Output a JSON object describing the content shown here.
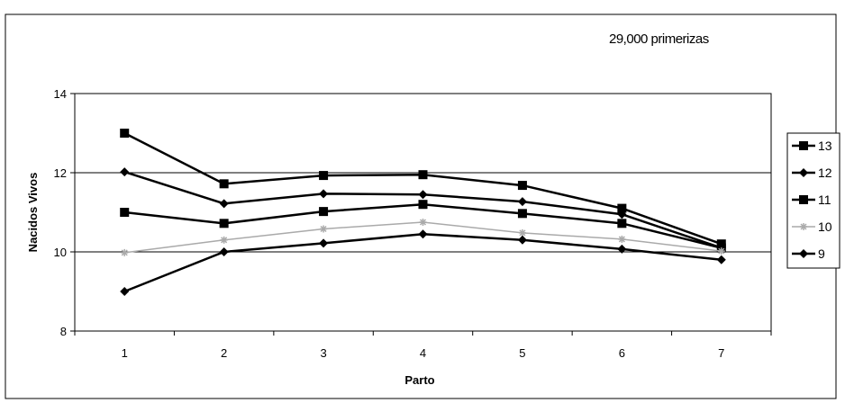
{
  "chart_data": {
    "type": "line",
    "title": "",
    "annotation": "29,000 primerizas",
    "xlabel": "Parto",
    "ylabel": "Nacidos Vivos",
    "categories": [
      "1",
      "2",
      "3",
      "4",
      "5",
      "6",
      "7"
    ],
    "ylim": [
      8,
      14
    ],
    "yticks": [
      "8",
      "10",
      "12",
      "14"
    ],
    "grid": "horizontal major gridlines",
    "legend_position": "right",
    "series": [
      {
        "name": "13",
        "marker": "square",
        "color": "#000000",
        "values": [
          13.0,
          11.72,
          11.93,
          11.95,
          11.68,
          11.1,
          10.2
        ]
      },
      {
        "name": "12",
        "marker": "diamond",
        "color": "#000000",
        "values": [
          12.02,
          11.22,
          11.47,
          11.45,
          11.27,
          10.95,
          10.1
        ]
      },
      {
        "name": "11",
        "marker": "square",
        "color": "#000000",
        "values": [
          11.0,
          10.72,
          11.02,
          11.2,
          10.97,
          10.72,
          10.1
        ]
      },
      {
        "name": "10",
        "marker": "asterisk",
        "color": "#aaaaaa",
        "values": [
          9.98,
          10.3,
          10.58,
          10.75,
          10.48,
          10.32,
          10.02
        ]
      },
      {
        "name": "9",
        "marker": "diamond",
        "color": "#000000",
        "values": [
          9.0,
          10.0,
          10.22,
          10.45,
          10.3,
          10.07,
          9.8
        ]
      }
    ]
  }
}
